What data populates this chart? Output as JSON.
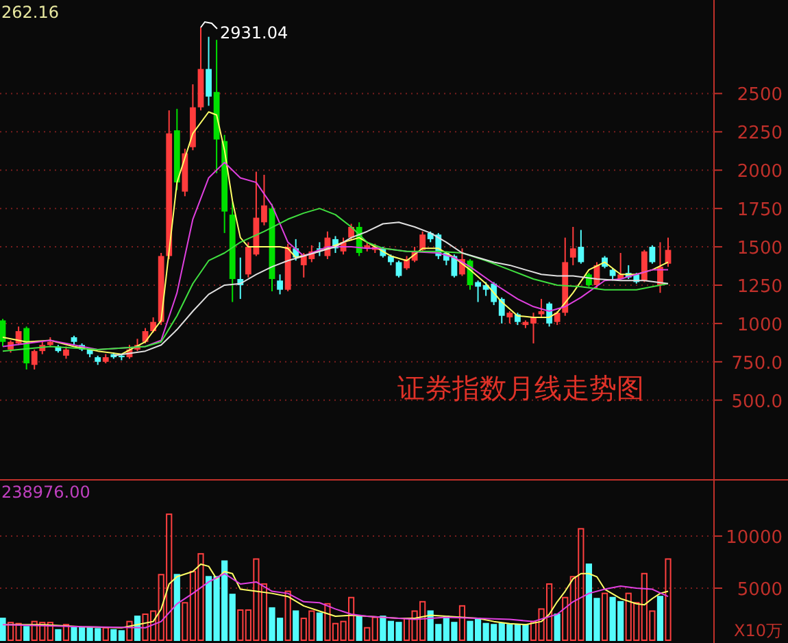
{
  "chart_data": [
    {
      "type": "candlestick",
      "title": "证券指数月线走势图",
      "categories": [
        null,
        null,
        null,
        null,
        null,
        null,
        null,
        null,
        null,
        null,
        null,
        null,
        null,
        null,
        null,
        null,
        null,
        null,
        null,
        null,
        null,
        null,
        null,
        null,
        null,
        null,
        null,
        null,
        null,
        null,
        null,
        null,
        null,
        null,
        null,
        null,
        null,
        null,
        null,
        null,
        null,
        null,
        null,
        null,
        null,
        null,
        null,
        null,
        null,
        null,
        null,
        null,
        null,
        null,
        null,
        null,
        null,
        null,
        null,
        null,
        null,
        null,
        null,
        null,
        null,
        null,
        null,
        null,
        null,
        null,
        null,
        null,
        null,
        null,
        null,
        null,
        null,
        null,
        null,
        null,
        null,
        null,
        null,
        null,
        null
      ],
      "ohlc": [
        [
          1020,
          1030,
          850,
          880
        ],
        [
          830,
          890,
          810,
          880
        ],
        [
          870,
          980,
          860,
          950
        ],
        [
          970,
          980,
          700,
          740
        ],
        [
          730,
          830,
          700,
          820
        ],
        [
          820,
          880,
          800,
          860
        ],
        [
          860,
          910,
          850,
          880
        ],
        [
          850,
          860,
          810,
          820
        ],
        [
          790,
          850,
          770,
          830
        ],
        [
          910,
          920,
          860,
          880
        ],
        [
          860,
          870,
          820,
          830
        ],
        [
          830,
          840,
          780,
          800
        ],
        [
          780,
          790,
          730,
          750
        ],
        [
          750,
          800,
          740,
          780
        ],
        [
          800,
          810,
          770,
          780
        ],
        [
          790,
          800,
          760,
          780
        ],
        [
          780,
          860,
          770,
          830
        ],
        [
          830,
          900,
          820,
          860
        ],
        [
          880,
          970,
          870,
          950
        ],
        [
          950,
          1040,
          940,
          1010
        ],
        [
          1010,
          1460,
          990,
          1440
        ],
        [
          1440,
          2390,
          1420,
          2240
        ],
        [
          2260,
          2400,
          1870,
          1920
        ],
        [
          1860,
          2140,
          1830,
          2110
        ],
        [
          2150,
          2560,
          2130,
          2410
        ],
        [
          2410,
          2931.04,
          2390,
          2660
        ],
        [
          2660,
          2870,
          2420,
          2480
        ],
        [
          2510,
          2850,
          1980,
          2200
        ],
        [
          2190,
          2230,
          1590,
          1730
        ],
        [
          1710,
          1790,
          1140,
          1290
        ],
        [
          1290,
          1430,
          1160,
          1250
        ],
        [
          1320,
          1530,
          1300,
          1500
        ],
        [
          1450,
          1990,
          1440,
          1690
        ],
        [
          1660,
          1970,
          1640,
          1770
        ],
        [
          1750,
          1780,
          1210,
          1290
        ],
        [
          1280,
          1320,
          1190,
          1220
        ],
        [
          1220,
          1520,
          1210,
          1500
        ],
        [
          1490,
          1550,
          1410,
          1430
        ],
        [
          1380,
          1460,
          1300,
          1450
        ],
        [
          1420,
          1510,
          1400,
          1470
        ],
        [
          1490,
          1530,
          1440,
          1480
        ],
        [
          1440,
          1600,
          1420,
          1560
        ],
        [
          1550,
          1570,
          1460,
          1490
        ],
        [
          1470,
          1560,
          1450,
          1530
        ],
        [
          1560,
          1650,
          1540,
          1630
        ],
        [
          1630,
          1660,
          1440,
          1460
        ],
        [
          1490,
          1530,
          1470,
          1510
        ],
        [
          1480,
          1520,
          1460,
          1500
        ],
        [
          1490,
          1500,
          1430,
          1440
        ],
        [
          1440,
          1450,
          1380,
          1400
        ],
        [
          1400,
          1410,
          1300,
          1310
        ],
        [
          1360,
          1440,
          1350,
          1420
        ],
        [
          1410,
          1500,
          1400,
          1470
        ],
        [
          1480,
          1600,
          1470,
          1580
        ],
        [
          1590,
          1600,
          1530,
          1550
        ],
        [
          1580,
          1590,
          1420,
          1440
        ],
        [
          1460,
          1470,
          1380,
          1410
        ],
        [
          1440,
          1450,
          1300,
          1310
        ],
        [
          1320,
          1490,
          1310,
          1420
        ],
        [
          1410,
          1420,
          1220,
          1250
        ],
        [
          1270,
          1280,
          1140,
          1240
        ],
        [
          1250,
          1270,
          1180,
          1220
        ],
        [
          1260,
          1270,
          1120,
          1140
        ],
        [
          1160,
          1170,
          1000,
          1050
        ],
        [
          1040,
          1080,
          1000,
          1070
        ],
        [
          1060,
          1070,
          990,
          1010
        ],
        [
          990,
          1020,
          970,
          1010
        ],
        [
          1000,
          1070,
          870,
          1040
        ],
        [
          1060,
          1160,
          1040,
          1080
        ],
        [
          1130,
          1140,
          980,
          1000
        ],
        [
          1010,
          1080,
          990,
          1070
        ],
        [
          1070,
          1560,
          1050,
          1400
        ],
        [
          1430,
          1630,
          1380,
          1490
        ],
        [
          1500,
          1610,
          1390,
          1400
        ],
        [
          1320,
          1330,
          1240,
          1250
        ],
        [
          1250,
          1400,
          1230,
          1380
        ],
        [
          1430,
          1440,
          1360,
          1370
        ],
        [
          1350,
          1360,
          1280,
          1310
        ],
        [
          1290,
          1460,
          1290,
          1320
        ],
        [
          1330,
          1380,
          1290,
          1300
        ],
        [
          1320,
          1330,
          1260,
          1270
        ],
        [
          1280,
          1480,
          1270,
          1470
        ],
        [
          1500,
          1510,
          1390,
          1400
        ],
        [
          1250,
          1530,
          1200,
          1370
        ],
        [
          1390,
          1560,
          1370,
          1480
        ]
      ],
      "colors": [
        "#00e000",
        "#ff3c3c",
        "#ff3c3c",
        "#00e000",
        "#ff3c3c",
        "#ff3c3c",
        "#ff3c3c",
        "#54fcfc",
        "#ff3c3c",
        "#54fcfc",
        "#54fcfc",
        "#54fcfc",
        "#54fcfc",
        "#ff3c3c",
        "#54fcfc",
        "#54fcfc",
        "#ff3c3c",
        "#ff3c3c",
        "#ff3c3c",
        "#ff3c3c",
        "#ff3c3c",
        "#ff3c3c",
        "#00e000",
        "#ff3c3c",
        "#ff3c3c",
        "#ff3c3c",
        "#54fcfc",
        "#00e000",
        "#00e000",
        "#00e000",
        "#54fcfc",
        "#ff3c3c",
        "#ff3c3c",
        "#ff3c3c",
        "#00e000",
        "#54fcfc",
        "#ff3c3c",
        "#54fcfc",
        "#ff3c3c",
        "#ff3c3c",
        "#54fcfc",
        "#ff3c3c",
        "#54fcfc",
        "#ff3c3c",
        "#ff3c3c",
        "#00e000",
        "#ff3c3c",
        "#ff3c3c",
        "#54fcfc",
        "#54fcfc",
        "#54fcfc",
        "#ff3c3c",
        "#ff3c3c",
        "#ff3c3c",
        "#54fcfc",
        "#54fcfc",
        "#54fcfc",
        "#54fcfc",
        "#ff3c3c",
        "#00e000",
        "#54fcfc",
        "#54fcfc",
        "#54fcfc",
        "#54fcfc",
        "#ff3c3c",
        "#54fcfc",
        "#ff3c3c",
        "#ff3c3c",
        "#ff3c3c",
        "#54fcfc",
        "#ff3c3c",
        "#ff3c3c",
        "#ff3c3c",
        "#54fcfc",
        "#00e000",
        "#ff3c3c",
        "#54fcfc",
        "#54fcfc",
        "#ff3c3c",
        "#54fcfc",
        "#54fcfc",
        "#ff3c3c",
        "#54fcfc",
        "#ff3c3c",
        "#ff3c3c"
      ],
      "series": [
        {
          "type": "line",
          "color": "#ffff66",
          "values": [
            910,
            null,
            null,
            880,
            null,
            null,
            890,
            null,
            null,
            850,
            null,
            null,
            820,
            null,
            null,
            800,
            null,
            null,
            880,
            null,
            1020,
            null,
            1920,
            null,
            2240,
            null,
            2380,
            2360,
            2130,
            1800,
            1560,
            1500,
            null,
            1500,
            null,
            1500,
            1490,
            1430,
            null,
            null,
            1470,
            null,
            null,
            1530,
            null,
            1560,
            null,
            1500,
            null,
            1440,
            null,
            1410,
            null,
            1490,
            null,
            1490,
            null,
            1430,
            null,
            1350,
            null,
            1260,
            null,
            1140,
            null,
            1050,
            null,
            1040,
            null,
            1040,
            1070,
            null,
            1200,
            null,
            1350,
            null,
            1400,
            null,
            1320,
            null,
            1320,
            null,
            1350,
            null,
            1400
          ]
        },
        {
          "type": "line",
          "color": "#e040e0",
          "values": [
            850,
            null,
            null,
            null,
            null,
            null,
            890,
            null,
            null,
            null,
            null,
            null,
            830,
            null,
            null,
            null,
            null,
            null,
            850,
            null,
            890,
            null,
            1200,
            null,
            1680,
            null,
            1950,
            null,
            2050,
            null,
            1950,
            null,
            1920,
            null,
            1770,
            null,
            1530,
            null,
            1440,
            null,
            null,
            1500,
            null,
            null,
            1500,
            null,
            1490,
            null,
            1490,
            null,
            null,
            1470,
            null,
            null,
            null,
            1460,
            null,
            1430,
            null,
            1370,
            null,
            null,
            1260,
            null,
            null,
            1160,
            null,
            1110,
            null,
            1080,
            null,
            1110,
            null,
            1170,
            null,
            null,
            1280,
            null,
            1290,
            null,
            1320,
            null,
            1350,
            null,
            1350
          ]
        },
        {
          "type": "line",
          "color": "#40e040",
          "values": [
            820,
            null,
            null,
            null,
            null,
            null,
            850,
            null,
            null,
            null,
            null,
            null,
            830,
            null,
            null,
            null,
            null,
            null,
            850,
            null,
            880,
            null,
            1050,
            null,
            1260,
            null,
            1410,
            null,
            1460,
            null,
            1530,
            null,
            null,
            1600,
            null,
            null,
            1680,
            null,
            1720,
            null,
            1750,
            null,
            1710,
            null,
            1630,
            null,
            1530,
            null,
            1490,
            null,
            null,
            1470,
            null,
            null,
            null,
            1470,
            null,
            null,
            1460,
            null,
            null,
            1410,
            null,
            null,
            1350,
            null,
            null,
            1290,
            null,
            null,
            1250,
            null,
            null,
            1240,
            null,
            null,
            1220,
            null,
            null,
            null,
            1220,
            null,
            null,
            null,
            1260
          ]
        },
        {
          "type": "line",
          "color": "#e0e0e0",
          "values": [
            null,
            null,
            null,
            null,
            null,
            null,
            null,
            null,
            null,
            null,
            null,
            null,
            null,
            null,
            790,
            null,
            null,
            null,
            820,
            null,
            860,
            null,
            960,
            null,
            1080,
            null,
            1190,
            null,
            1250,
            null,
            1260,
            null,
            1320,
            null,
            1370,
            null,
            1410,
            null,
            1440,
            null,
            1470,
            null,
            1500,
            null,
            1560,
            null,
            1600,
            null,
            1650,
            null,
            1660,
            null,
            1630,
            null,
            1590,
            null,
            1530,
            null,
            1460,
            null,
            1430,
            null,
            1400,
            null,
            1380,
            null,
            1350,
            null,
            1320,
            null,
            1310,
            null,
            1310,
            null,
            null,
            1290,
            null,
            null,
            1280,
            null,
            null,
            1280,
            null,
            null,
            1260
          ]
        }
      ],
      "ylim": [
        -20,
        3110
      ],
      "yticks": [
        {
          "value": 500,
          "label": "500.0"
        },
        {
          "value": 750,
          "label": "750.0"
        },
        1000,
        1250,
        1500,
        1750,
        2000,
        2250,
        2500
      ],
      "grid": "y",
      "annotations": [
        "262.16",
        "2931.04"
      ]
    },
    {
      "type": "bar",
      "categories": [
        null,
        null,
        null,
        null,
        null,
        null,
        null,
        null,
        null,
        null,
        null,
        null,
        null,
        null,
        null,
        null,
        null,
        null,
        null,
        null,
        null,
        null,
        null,
        null,
        null,
        null,
        null,
        null,
        null,
        null,
        null,
        null,
        null,
        null,
        null,
        null,
        null,
        null,
        null,
        null,
        null,
        null,
        null,
        null,
        null,
        null,
        null,
        null,
        null,
        null,
        null,
        null,
        null,
        null,
        null,
        null,
        null,
        null,
        null,
        null,
        null,
        null,
        null,
        null,
        null,
        null,
        null,
        null,
        null,
        null,
        null,
        null,
        null,
        null,
        null,
        null,
        null,
        null,
        null,
        null,
        null,
        null,
        null,
        null,
        null
      ],
      "values": [
        2100,
        1700,
        1600,
        1300,
        1800,
        1700,
        1700,
        1000,
        1500,
        1300,
        1200,
        1200,
        1100,
        1200,
        1000,
        900,
        1800,
        2300,
        2500,
        2800,
        6300,
        12100,
        6300,
        3600,
        6600,
        8300,
        6100,
        6100,
        7600,
        4400,
        2900,
        2900,
        7800,
        5400,
        3100,
        2100,
        4700,
        2800,
        2100,
        2800,
        2600,
        3500,
        1600,
        1800,
        4100,
        2300,
        1200,
        2200,
        2300,
        1800,
        1700,
        2100,
        2800,
        3700,
        2800,
        1500,
        2300,
        1700,
        3300,
        1800,
        2100,
        1600,
        1500,
        1600,
        1500,
        1500,
        1500,
        1800,
        3000,
        5400,
        2500,
        4100,
        6100,
        10700,
        7300,
        4000,
        4500,
        4100,
        3700,
        4500,
        3600,
        6400,
        2800,
        4200,
        7800
      ],
      "colors": [
        "#54fcfc",
        "#ff4040",
        "#ff4040",
        "#54fcfc",
        "#ff4040",
        "#ff4040",
        "#ff4040",
        "#54fcfc",
        "#ff4040",
        "#54fcfc",
        "#54fcfc",
        "#54fcfc",
        "#54fcfc",
        "#ff4040",
        "#54fcfc",
        "#54fcfc",
        "#ff4040",
        "#54fcfc",
        "#ff4040",
        "#ff4040",
        "#ff4040",
        "#ff4040",
        "#54fcfc",
        "#ff4040",
        "#ff4040",
        "#ff4040",
        "#54fcfc",
        "#54fcfc",
        "#54fcfc",
        "#54fcfc",
        "#ff4040",
        "#ff4040",
        "#ff4040",
        "#ff4040",
        "#54fcfc",
        "#54fcfc",
        "#ff4040",
        "#54fcfc",
        "#ff4040",
        "#ff4040",
        "#54fcfc",
        "#ff4040",
        "#ff4040",
        "#ff4040",
        "#ff4040",
        "#54fcfc",
        "#ff4040",
        "#ff4040",
        "#54fcfc",
        "#54fcfc",
        "#54fcfc",
        "#ff4040",
        "#ff4040",
        "#ff4040",
        "#54fcfc",
        "#54fcfc",
        "#54fcfc",
        "#54fcfc",
        "#ff4040",
        "#54fcfc",
        "#54fcfc",
        "#54fcfc",
        "#54fcfc",
        "#54fcfc",
        "#54fcfc",
        "#54fcfc",
        "#54fcfc",
        "#ff4040",
        "#ff4040",
        "#ff4040",
        "#54fcfc",
        "#ff4040",
        "#ff4040",
        "#ff4040",
        "#54fcfc",
        "#54fcfc",
        "#ff4040",
        "#54fcfc",
        "#54fcfc",
        "#ff4040",
        "#ff4040",
        "#ff4040",
        "#ff4040",
        "#54fcfc",
        "#ff4040"
      ],
      "series": [
        {
          "type": "line",
          "color": "#ffff66",
          "values": [
            1500,
            null,
            null,
            null,
            null,
            1500,
            null,
            null,
            null,
            null,
            1300,
            null,
            null,
            null,
            null,
            1200,
            null,
            1500,
            null,
            1800,
            3000,
            5400,
            6100,
            null,
            6600,
            7300,
            7100,
            5900,
            6600,
            6400,
            4900,
            null,
            4700,
            null,
            4500,
            null,
            4200,
            null,
            3300,
            null,
            2800,
            null,
            2300,
            null,
            2400,
            null,
            2300,
            null,
            2200,
            null,
            2100,
            null,
            2100,
            null,
            2400,
            null,
            2300,
            null,
            2200,
            null,
            2100,
            null,
            1800,
            null,
            1600,
            null,
            1500,
            null,
            1800,
            2500,
            3700,
            4700,
            5900,
            6400,
            6400,
            6100,
            4900,
            null,
            4000,
            null,
            3500,
            3400,
            4000,
            4500,
            4700
          ]
        },
        {
          "type": "line",
          "color": "#e040e0",
          "values": [
            1500,
            null,
            null,
            null,
            null,
            null,
            null,
            null,
            null,
            null,
            1300,
            null,
            null,
            null,
            null,
            null,
            null,
            null,
            1200,
            null,
            1800,
            null,
            3500,
            null,
            4500,
            null,
            5600,
            null,
            6400,
            null,
            5400,
            null,
            5600,
            null,
            4700,
            null,
            4500,
            null,
            3700,
            null,
            3600,
            null,
            3000,
            null,
            2500,
            null,
            2300,
            null,
            2200,
            null,
            null,
            null,
            2000,
            null,
            null,
            null,
            2200,
            null,
            null,
            null,
            2100,
            null,
            null,
            null,
            2000,
            null,
            null,
            1800,
            null,
            null,
            2500,
            null,
            3700,
            null,
            4500,
            null,
            4900,
            null,
            5200,
            null,
            5000,
            null,
            4900,
            null,
            4200
          ]
        }
      ],
      "ylim": [
        0,
        15400
      ],
      "yticks": [
        5000,
        10000
      ],
      "ylabel": "X10万",
      "grid": "y",
      "annotations": [
        "238976.00"
      ]
    }
  ]
}
